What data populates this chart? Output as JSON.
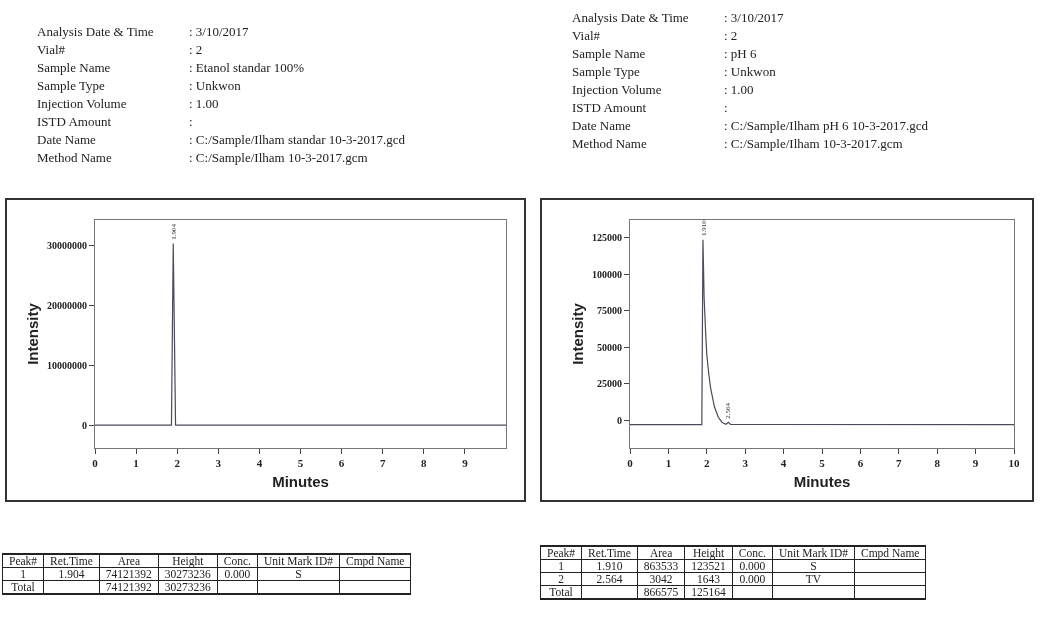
{
  "chart_data": [
    {
      "type": "line",
      "xlabel": "Minutes",
      "ylabel": "Intensity",
      "xlim": [
        0,
        10
      ],
      "xticks": [
        0,
        1,
        2,
        3,
        4,
        5,
        6,
        7,
        8,
        9
      ],
      "ylim": [
        -3800000,
        34200000
      ],
      "yticks": [
        0,
        10000000,
        20000000,
        30000000
      ],
      "grid": false,
      "marker": "none",
      "line_style": "solid",
      "series": [
        {
          "color": "#4a4a5a",
          "x": [
            0,
            1.86,
            1.904,
            1.96,
            2.0,
            10
          ],
          "values": [
            0,
            0,
            30273236,
            0,
            0,
            0
          ]
        }
      ],
      "annotations": [
        "Analysis Date & Time\t: 3/10/2017",
        "Vial#\t: 2",
        "Sample Name\t: Etanol standar 100%",
        "Sample Type\t: Unkwon",
        "Injection Volume\t: 1.00",
        "ISTD Amount\t:",
        "Date Name\t: C:/Sample/Ilham standar 10-3-2017.gcd",
        "Method Name\t: C:/Sample/Ilham 10-3-2017.gcm",
        {
          "text": "1.904",
          "x": 1.904,
          "y": 30273236
        },
        "Peak#\tRet.Time\tArea\tHeight\tConc.\tUnit Mark ID#\tCmpd Name",
        "1\t1.904\t74121392\t30273236\t0.000\tS\t",
        "Total\t\t74121392\t30273236\t\t\t"
      ]
    },
    {
      "type": "line",
      "xlabel": "Minutes",
      "ylabel": "Intensity",
      "xlim": [
        0,
        10
      ],
      "xticks": [
        0,
        1,
        2,
        3,
        4,
        5,
        6,
        7,
        8,
        9,
        10
      ],
      "ylim": [
        -19000,
        137000
      ],
      "yticks": [
        0,
        25000,
        50000,
        75000,
        100000,
        125000
      ],
      "grid": false,
      "marker": "none",
      "line_style": "solid",
      "series": [
        {
          "color": "#4a4a5a",
          "x": [
            0,
            1.87,
            1.9,
            1.93,
            1.97,
            2.0,
            2.05,
            2.1,
            2.2,
            2.3,
            2.4,
            2.5,
            2.564,
            2.62,
            10
          ],
          "values": [
            -3000,
            -3000,
            123521,
            84000,
            60000,
            45000,
            32000,
            22000,
            9000,
            2000,
            -1500,
            -2800,
            -1400,
            -2900,
            -3000
          ]
        }
      ],
      "annotations": [
        "Analysis Date & Time\t: 3/10/2017",
        "Vial#\t: 2",
        "Sample Name\t: pH 6",
        "Sample Type\t: Unkwon",
        "Injection Volume\t: 1.00",
        "ISTD Amount\t:",
        "Date Name\t: C:/Sample/Ilham pH 6 10-3-2017.gcd",
        "Method Name\t: C:/Sample/Ilham 10-3-2017.gcm",
        {
          "text": "1.910",
          "x": 1.91,
          "y": 123521
        },
        {
          "text": "2.564",
          "x": 2.564,
          "y": -1400
        },
        "Peak#\tRet.Time\tArea\tHeight\tConc.\tUnit Mark ID#\tCmpd Name",
        "1\t1.910\t863533\t123521\t0.000\tS\t",
        "2\t2.564\t3042\t1643\t0.000\tTV\t",
        "Total\t\t866575\t125164\t\t\t"
      ]
    }
  ]
}
